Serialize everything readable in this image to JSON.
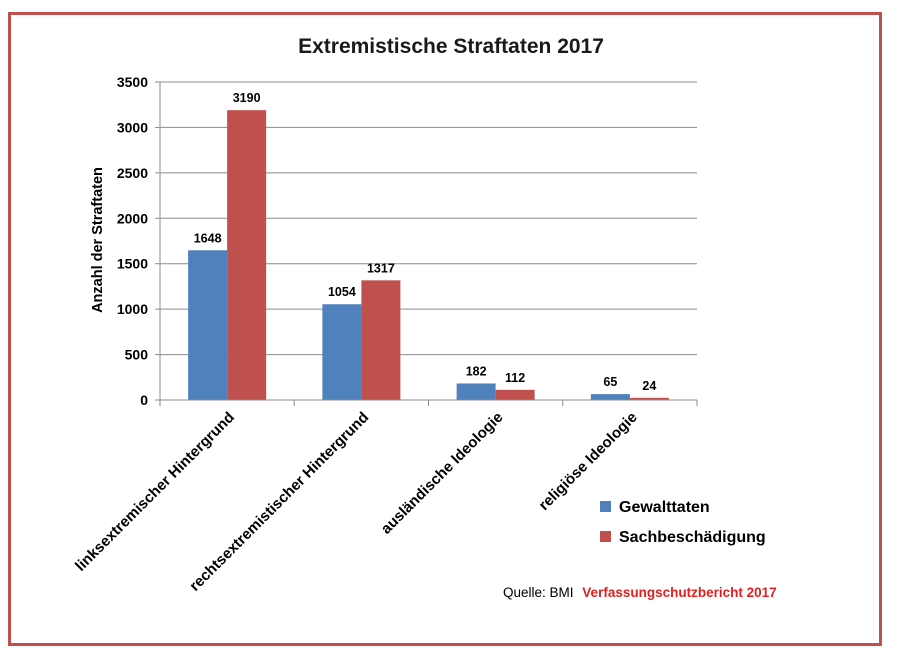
{
  "chart_data": {
    "type": "bar",
    "title": "Extremistische Straftaten 2017",
    "xlabel": "",
    "ylabel": "Anzahl der Straftaten",
    "ylim": [
      0,
      3500
    ],
    "yticks": [
      0,
      500,
      1000,
      1500,
      2000,
      2500,
      3000,
      3500
    ],
    "grid": true,
    "legend_position": "bottom-right",
    "categories": [
      "linksextremischer Hintergrund",
      "rechtsextremistischer Hintergrund",
      "ausländische Ideologie",
      "religiöse Ideologie"
    ],
    "series": [
      {
        "name": "Gewalttaten",
        "color": "#4f81bd",
        "values": [
          1648,
          1054,
          182,
          65
        ]
      },
      {
        "name": "Sachbeschädigung",
        "color": "#c0504d",
        "values": [
          3190,
          1317,
          112,
          24
        ]
      }
    ]
  },
  "source": {
    "prefix": "Quelle: BMI",
    "highlight": "Verfassungschutzbericht 2017",
    "highlight_color": "#e02020"
  },
  "frame_color": "#c0504d"
}
